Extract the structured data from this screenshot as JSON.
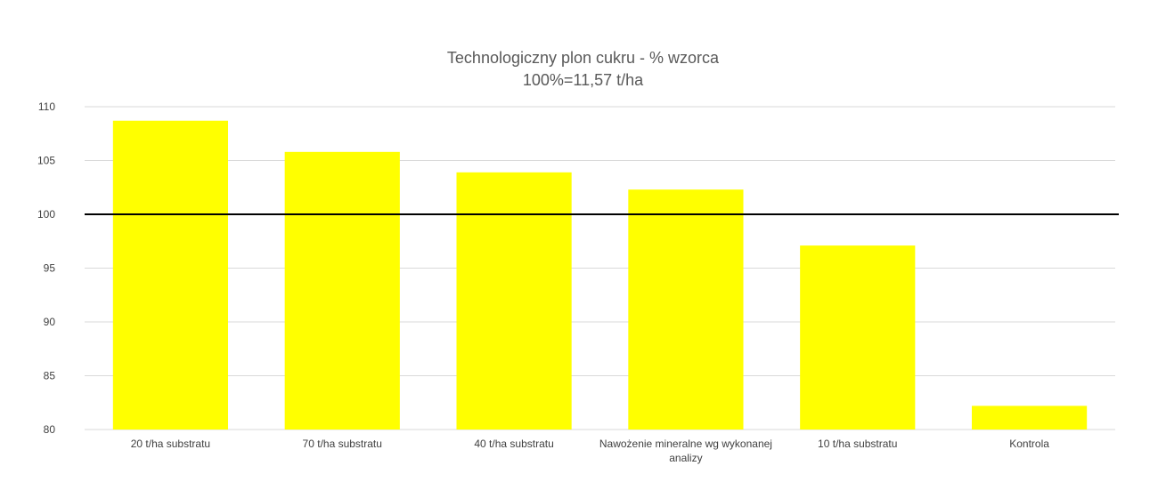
{
  "chart_data": {
    "type": "bar",
    "title": "Technologiczny plon cukru - % wzorca",
    "subtitle": "100%=11,57 t/ha",
    "xlabel": "",
    "ylabel": "",
    "categories": [
      "20 t/ha substratu",
      "70 t/ha substratu",
      "40 t/ha substratu",
      "Nawożenie mineralne wg wykonanej analizy",
      "10 t/ha substratu",
      "Kontrola"
    ],
    "category_lines": [
      [
        "20 t/ha substratu"
      ],
      [
        "70 t/ha substratu"
      ],
      [
        "40 t/ha substratu"
      ],
      [
        "Nawożenie mineralne wg wykonanej",
        "analizy"
      ],
      [
        "10 t/ha substratu"
      ],
      [
        "Kontrola"
      ]
    ],
    "values": [
      108.7,
      105.8,
      103.9,
      102.3,
      97.1,
      82.2
    ],
    "ylim": [
      80,
      110
    ],
    "yticks": [
      "80",
      "85",
      "90",
      "95",
      "100",
      "105",
      "110"
    ],
    "reference_line": 100,
    "grid": true,
    "legend": "none",
    "colors": {
      "bar": "#FFFF00",
      "grid": "#D9D9D9",
      "reference_line": "#000000",
      "text": "#404040",
      "title": "#595959"
    }
  }
}
